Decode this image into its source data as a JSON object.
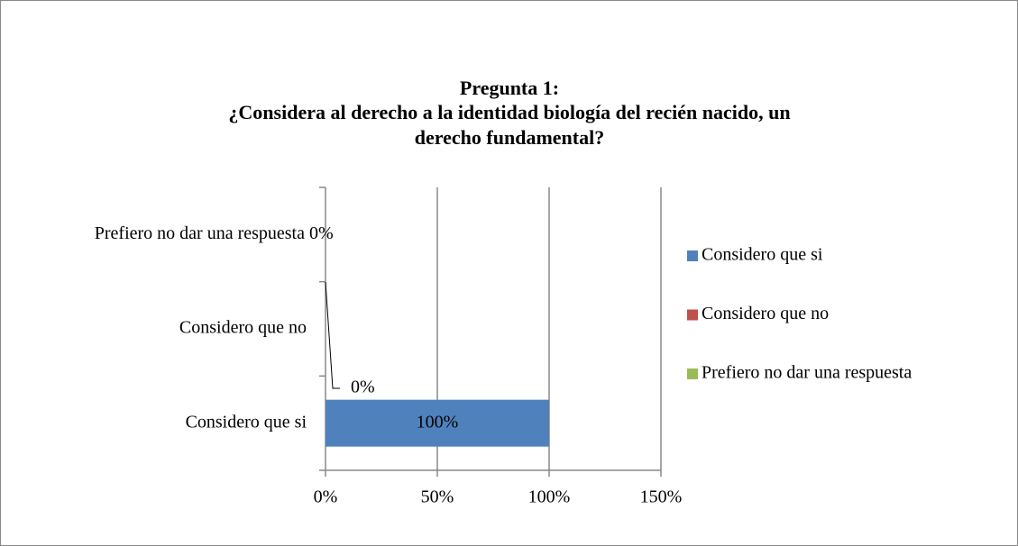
{
  "chart_data": {
    "type": "bar",
    "orientation": "horizontal",
    "title": [
      "Pregunta 1:",
      "¿Considera al derecho a la identidad biología del recién nacido, un",
      "derecho fundamental?"
    ],
    "categories": [
      "Considero que si",
      "Considero que no",
      "Prefiero no dar una respuesta"
    ],
    "values": [
      100,
      0,
      0
    ],
    "value_labels": [
      "100%",
      "0%",
      "0%"
    ],
    "colors": [
      "#4f81bd",
      "#c0504d",
      "#9bbb59"
    ],
    "xlim": [
      0,
      150
    ],
    "xticks": [
      {
        "value": 0,
        "label": "0%"
      },
      {
        "value": 50,
        "label": "50%"
      },
      {
        "value": 100,
        "label": "100%"
      },
      {
        "value": 150,
        "label": "150%"
      }
    ],
    "grid": true,
    "legend": "right"
  }
}
